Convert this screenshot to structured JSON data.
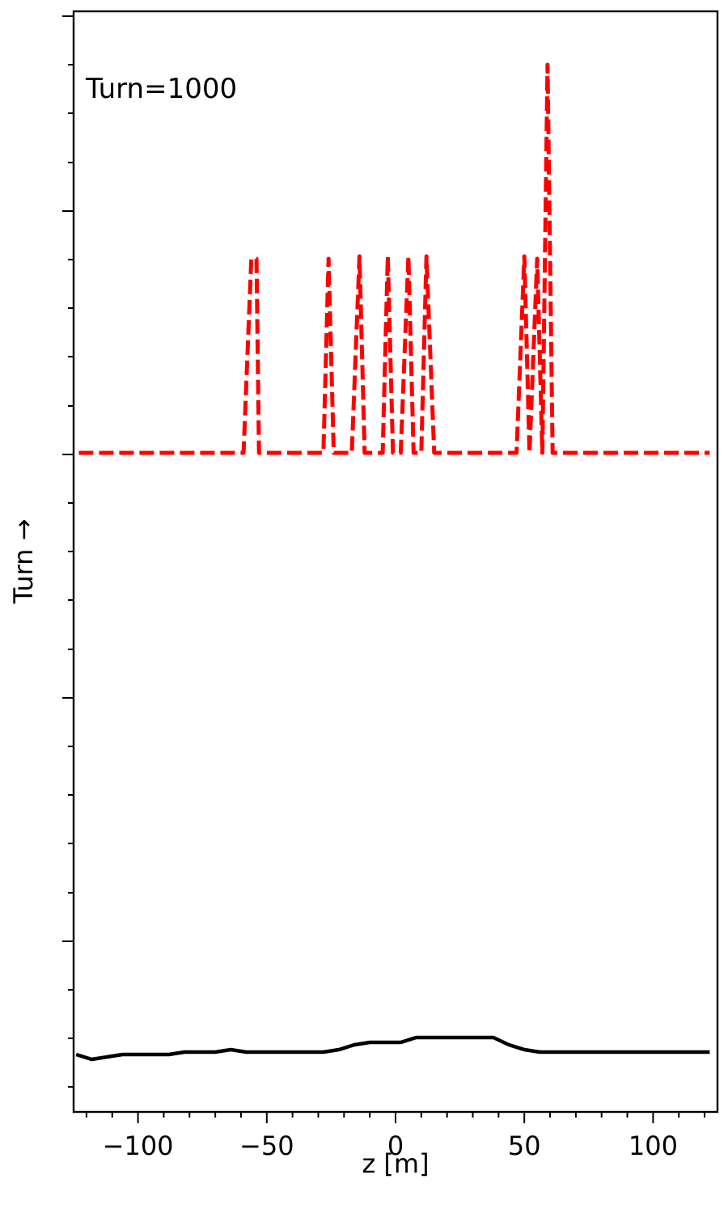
{
  "chart_data": {
    "type": "line",
    "title": "",
    "xlabel": "z [m]",
    "ylabel": "Turn →",
    "xlim": [
      -125,
      125
    ],
    "x_ticks": [
      -100,
      -50,
      0,
      50,
      100
    ],
    "x_tick_labels": [
      "−100",
      "−50",
      "0",
      "50",
      "100"
    ],
    "y_ticks_labeled": false,
    "grid": false,
    "annotation": "Turn=1000",
    "series": [
      {
        "style": "dashed",
        "color": "#ff0000",
        "points": [
          [
            -123,
            0
          ],
          [
            -59,
            0
          ],
          [
            -56,
            0.8
          ],
          [
            -54,
            0.8
          ],
          [
            -53,
            0
          ],
          [
            -28,
            0
          ],
          [
            -26,
            0.8
          ],
          [
            -24,
            0
          ],
          [
            -17,
            0
          ],
          [
            -14,
            0.81
          ],
          [
            -12,
            0
          ],
          [
            -5,
            0
          ],
          [
            -3,
            0.81
          ],
          [
            -1,
            0
          ],
          [
            2,
            0
          ],
          [
            5,
            0.81
          ],
          [
            7,
            0
          ],
          [
            10,
            0
          ],
          [
            12,
            0.81
          ],
          [
            15,
            0
          ],
          [
            47,
            0
          ],
          [
            50,
            0.81
          ],
          [
            52,
            0
          ],
          [
            55,
            0.8
          ],
          [
            57,
            0
          ],
          [
            59,
            1.6
          ],
          [
            61,
            0
          ],
          [
            122,
            0
          ]
        ]
      },
      {
        "style": "solid",
        "color": "#000000",
        "points": [
          [
            -124,
            -2.48
          ],
          [
            -118,
            -2.5
          ],
          [
            -112,
            -2.49
          ],
          [
            -106,
            -2.48
          ],
          [
            -100,
            -2.48
          ],
          [
            -94,
            -2.48
          ],
          [
            -88,
            -2.48
          ],
          [
            -82,
            -2.47
          ],
          [
            -76,
            -2.47
          ],
          [
            -70,
            -2.47
          ],
          [
            -64,
            -2.46
          ],
          [
            -58,
            -2.47
          ],
          [
            -52,
            -2.47
          ],
          [
            -46,
            -2.47
          ],
          [
            -40,
            -2.47
          ],
          [
            -34,
            -2.47
          ],
          [
            -28,
            -2.47
          ],
          [
            -22,
            -2.46
          ],
          [
            -16,
            -2.44
          ],
          [
            -10,
            -2.43
          ],
          [
            -4,
            -2.43
          ],
          [
            2,
            -2.43
          ],
          [
            8,
            -2.41
          ],
          [
            14,
            -2.41
          ],
          [
            20,
            -2.41
          ],
          [
            26,
            -2.41
          ],
          [
            32,
            -2.41
          ],
          [
            38,
            -2.41
          ],
          [
            44,
            -2.44
          ],
          [
            50,
            -2.46
          ],
          [
            56,
            -2.47
          ],
          [
            62,
            -2.47
          ],
          [
            68,
            -2.47
          ],
          [
            74,
            -2.47
          ],
          [
            80,
            -2.47
          ],
          [
            86,
            -2.47
          ],
          [
            92,
            -2.47
          ],
          [
            98,
            -2.47
          ],
          [
            104,
            -2.47
          ],
          [
            110,
            -2.47
          ],
          [
            116,
            -2.47
          ],
          [
            122,
            -2.47
          ]
        ]
      }
    ]
  }
}
